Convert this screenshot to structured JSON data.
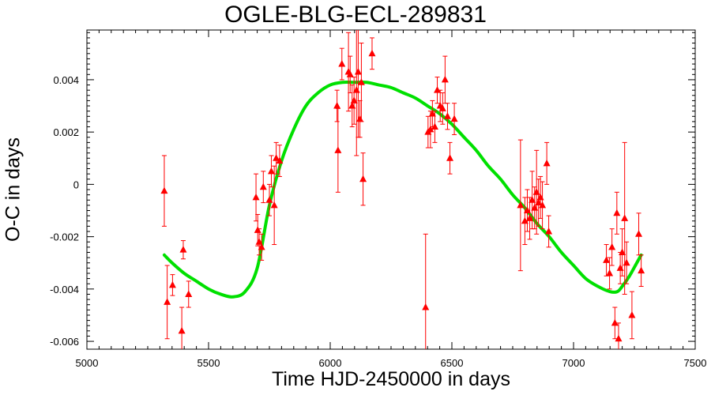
{
  "chart_data": {
    "type": "scatter",
    "title": "OGLE-BLG-ECL-289831",
    "xlabel": "Time HJD-2450000 in days",
    "ylabel": "O-C in days",
    "xlim": [
      5000,
      7500
    ],
    "ylim": [
      -0.0063,
      0.0059
    ],
    "xticks": [
      5000,
      5500,
      6000,
      6500,
      7000,
      7500
    ],
    "xtick_labels": [
      "5000",
      "5500",
      "6000",
      "6500",
      "7000",
      "7500"
    ],
    "yticks": [
      -0.006,
      -0.004,
      -0.002,
      0,
      0.002,
      0.004
    ],
    "ytick_labels": [
      "-0.006",
      "-0.004",
      "-0.002",
      "0",
      "0.002",
      "0.004"
    ],
    "grid": false,
    "series": [
      {
        "marker": "triangle",
        "color": "#ff0000",
        "points": [
          {
            "x": 5318,
            "y": -0.00025,
            "err": 0.00135
          },
          {
            "x": 5330,
            "y": -0.0045,
            "err": 0.0014
          },
          {
            "x": 5352,
            "y": -0.00385,
            "err": 0.0004
          },
          {
            "x": 5390,
            "y": -0.0056,
            "err": 0.0009
          },
          {
            "x": 5396,
            "y": -0.0025,
            "err": 0.00035
          },
          {
            "x": 5418,
            "y": -0.0042,
            "err": 0.0005
          },
          {
            "x": 5695,
            "y": -0.0005,
            "err": 0.0009
          },
          {
            "x": 5702,
            "y": -0.00175,
            "err": 0.0006
          },
          {
            "x": 5708,
            "y": -0.0022,
            "err": 0.0005
          },
          {
            "x": 5718,
            "y": -0.0024,
            "err": 0.0005
          },
          {
            "x": 5725,
            "y": -0.0001,
            "err": 0.0006
          },
          {
            "x": 5750,
            "y": -0.0006,
            "err": 0.0006
          },
          {
            "x": 5758,
            "y": 0.0005,
            "err": 0.0006
          },
          {
            "x": 5770,
            "y": -0.0008,
            "err": 0.0015
          },
          {
            "x": 5778,
            "y": 0.001,
            "err": 0.0006
          },
          {
            "x": 5792,
            "y": 0.0009,
            "err": 0.0006
          },
          {
            "x": 6028,
            "y": 0.003,
            "err": 0.0006
          },
          {
            "x": 6032,
            "y": 0.0013,
            "err": 0.0016
          },
          {
            "x": 6048,
            "y": 0.0046,
            "err": 0.0006
          },
          {
            "x": 6075,
            "y": 0.0043,
            "err": 0.0015
          },
          {
            "x": 6082,
            "y": 0.0042,
            "err": 0.0007
          },
          {
            "x": 6090,
            "y": 0.003,
            "err": 0.0008
          },
          {
            "x": 6098,
            "y": 0.0032,
            "err": 0.0009
          },
          {
            "x": 6108,
            "y": 0.0036,
            "err": 0.0025
          },
          {
            "x": 6115,
            "y": 0.0043,
            "err": 0.0025
          },
          {
            "x": 6122,
            "y": 0.0025,
            "err": 0.0007
          },
          {
            "x": 6128,
            "y": 0.0039,
            "err": 0.0015
          },
          {
            "x": 6135,
            "y": 0.0002,
            "err": 0.001
          },
          {
            "x": 6172,
            "y": 0.005,
            "err": 0.0006
          },
          {
            "x": 6392,
            "y": -0.0047,
            "err": 0.0028
          },
          {
            "x": 6402,
            "y": 0.002,
            "err": 0.0006
          },
          {
            "x": 6412,
            "y": 0.0021,
            "err": 0.0007
          },
          {
            "x": 6420,
            "y": 0.0027,
            "err": 0.0005
          },
          {
            "x": 6430,
            "y": 0.0022,
            "err": 0.0006
          },
          {
            "x": 6440,
            "y": 0.0036,
            "err": 0.0005
          },
          {
            "x": 6452,
            "y": 0.003,
            "err": 0.0006
          },
          {
            "x": 6462,
            "y": 0.0029,
            "err": 0.0006
          },
          {
            "x": 6472,
            "y": 0.004,
            "err": 0.0009
          },
          {
            "x": 6482,
            "y": 0.0026,
            "err": 0.0005
          },
          {
            "x": 6492,
            "y": 0.001,
            "err": 0.0006
          },
          {
            "x": 6510,
            "y": 0.0025,
            "err": 0.0006
          },
          {
            "x": 6782,
            "y": -0.0008,
            "err": 0.0025
          },
          {
            "x": 6800,
            "y": -0.0014,
            "err": 0.0009
          },
          {
            "x": 6810,
            "y": -0.001,
            "err": 0.0008
          },
          {
            "x": 6820,
            "y": -0.0013,
            "err": 0.0008
          },
          {
            "x": 6830,
            "y": -0.0006,
            "err": 0.0011
          },
          {
            "x": 6840,
            "y": -0.0009,
            "err": 0.0008
          },
          {
            "x": 6848,
            "y": -0.0003,
            "err": 0.0016
          },
          {
            "x": 6856,
            "y": -0.0007,
            "err": 0.0009
          },
          {
            "x": 6864,
            "y": -0.0005,
            "err": 0.0008
          },
          {
            "x": 6872,
            "y": -0.0008,
            "err": 0.0009
          },
          {
            "x": 6890,
            "y": 0.0008,
            "err": 0.0008
          },
          {
            "x": 6898,
            "y": -0.0018,
            "err": 0.0006
          },
          {
            "x": 7135,
            "y": -0.0029,
            "err": 0.0006
          },
          {
            "x": 7148,
            "y": -0.0034,
            "err": 0.0006
          },
          {
            "x": 7158,
            "y": -0.0024,
            "err": 0.0007
          },
          {
            "x": 7170,
            "y": -0.0053,
            "err": 0.0006
          },
          {
            "x": 7178,
            "y": -0.0011,
            "err": 0.0008
          },
          {
            "x": 7185,
            "y": -0.0059,
            "err": 0.0006
          },
          {
            "x": 7192,
            "y": -0.0032,
            "err": 0.0006
          },
          {
            "x": 7200,
            "y": -0.0026,
            "err": 0.0009
          },
          {
            "x": 7210,
            "y": -0.0013,
            "err": 0.0029
          },
          {
            "x": 7218,
            "y": -0.003,
            "err": 0.0008
          },
          {
            "x": 7240,
            "y": -0.005,
            "err": 0.0009
          },
          {
            "x": 7268,
            "y": -0.0019,
            "err": 0.0008
          },
          {
            "x": 7278,
            "y": -0.0033,
            "err": 0.0006
          }
        ]
      },
      {
        "type": "line",
        "color": "#00e000",
        "x": [
          5318,
          5350,
          5400,
          5450,
          5500,
          5550,
          5600,
          5650,
          5700,
          5750,
          5800,
          5850,
          5900,
          5950,
          6000,
          6050,
          6100,
          6150,
          6200,
          6250,
          6300,
          6350,
          6400,
          6450,
          6500,
          6550,
          6600,
          6650,
          6700,
          6750,
          6800,
          6850,
          6900,
          6950,
          7000,
          7050,
          7100,
          7150,
          7180,
          7200,
          7230,
          7260,
          7278
        ],
        "y": [
          -0.0027,
          -0.003,
          -0.0034,
          -0.0037,
          -0.004,
          -0.0042,
          -0.0043,
          -0.0041,
          -0.0032,
          -0.0008,
          0.0009,
          0.0021,
          0.003,
          0.0035,
          0.0038,
          0.0039,
          0.0039,
          0.0039,
          0.0038,
          0.0037,
          0.0035,
          0.0033,
          0.003,
          0.0027,
          0.0023,
          0.0018,
          0.0013,
          0.0007,
          0.0002,
          -0.0004,
          -0.0009,
          -0.0015,
          -0.002,
          -0.0026,
          -0.0031,
          -0.0036,
          -0.0039,
          -0.0041,
          -0.0041,
          -0.0039,
          -0.0035,
          -0.003,
          -0.0027
        ]
      }
    ]
  }
}
